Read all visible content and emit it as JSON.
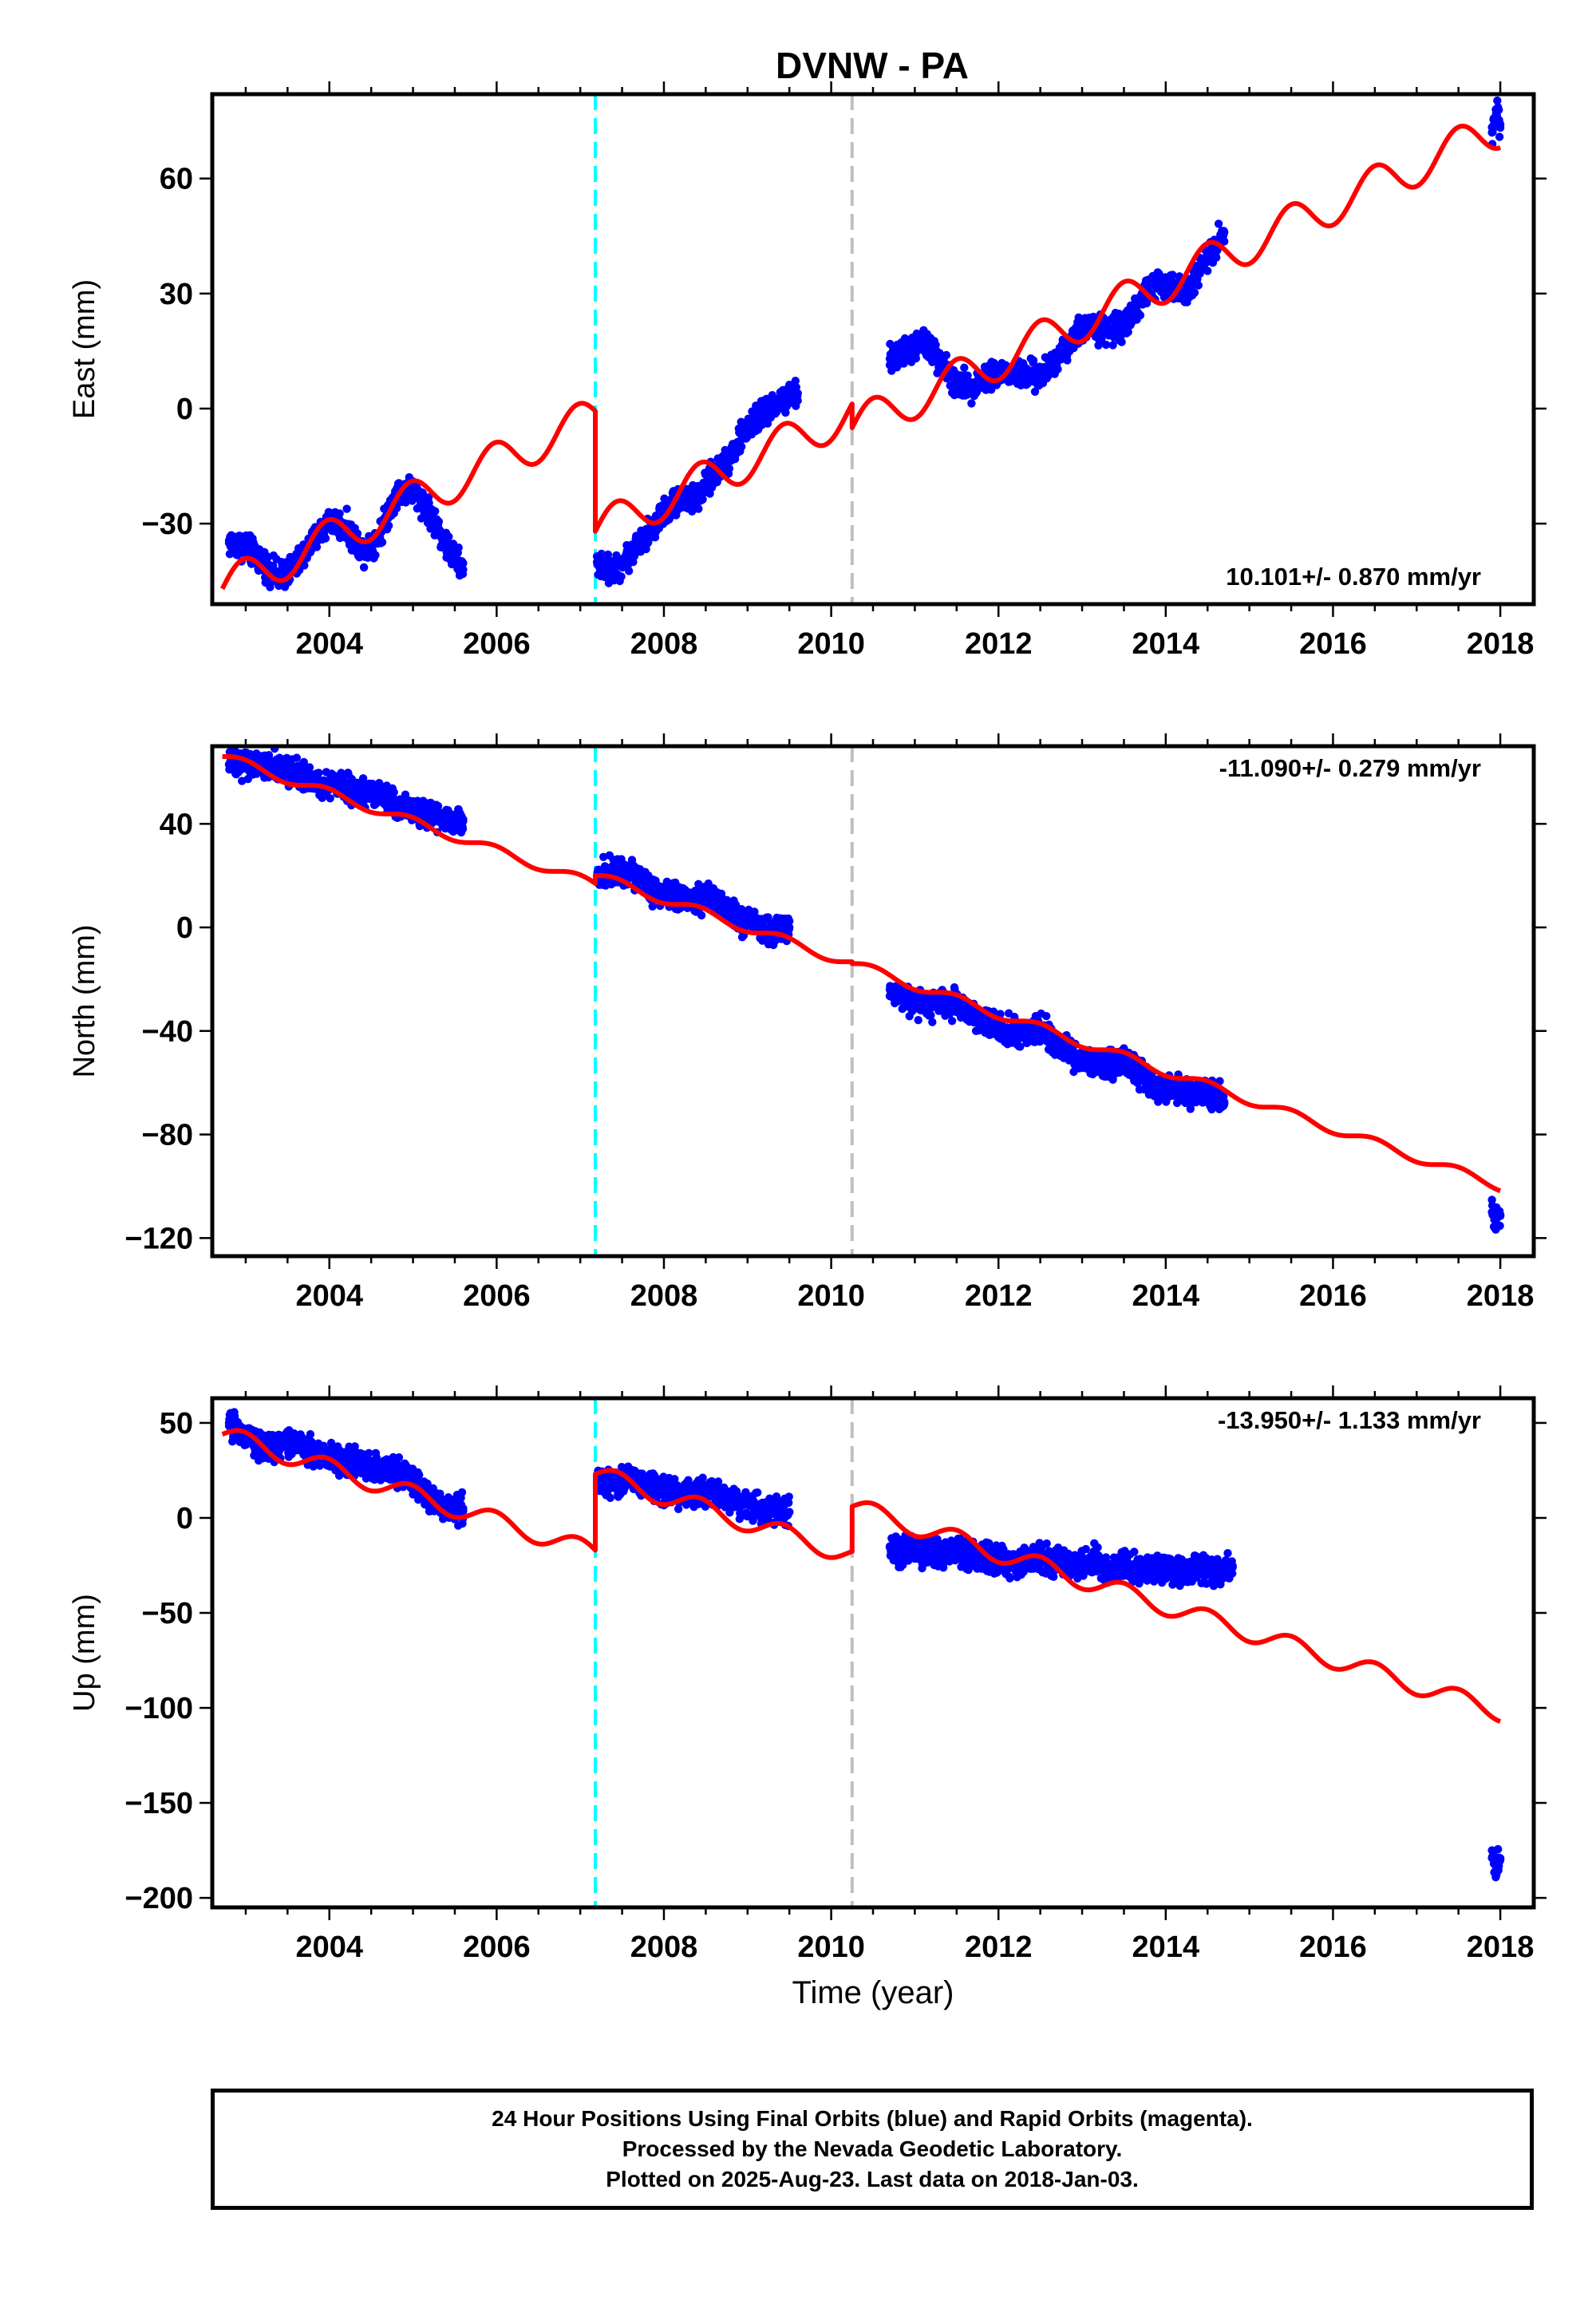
{
  "title": "DVNW - PA",
  "colors": {
    "data_points": "#0000ff",
    "model_line": "#ff0000",
    "antenna_change": "#00ffff",
    "other_offset": "#c0c0c0",
    "frame": "#000000"
  },
  "chart_data": [
    {
      "type": "scatter",
      "component": "East",
      "ylabel": "East (mm)",
      "xlabel": "",
      "xlim": [
        2002.6,
        2018.4
      ],
      "ylim": [
        -51,
        82
      ],
      "xticks": [
        2004,
        2006,
        2008,
        2010,
        2012,
        2014,
        2016,
        2018
      ],
      "yticks": [
        -30,
        0,
        30,
        60
      ],
      "rate_label": "10.101+/- 0.870 mm/yr",
      "rate_position": "bottom-right",
      "offsets": [
        {
          "year": 2007.18,
          "kind": "antenna"
        },
        {
          "year": 2010.25,
          "kind": "other"
        }
      ],
      "series": [
        {
          "kind": "daily-positions",
          "segments": [
            {
              "t": [
                2002.8,
                2003.0,
                2003.2,
                2003.4,
                2003.6,
                2003.8,
                2004.0,
                2004.2,
                2004.4,
                2004.6,
                2004.8,
                2005.0,
                2005.2,
                2005.4,
                2005.6
              ],
              "y": [
                -35,
                -36,
                -40,
                -44,
                -41,
                -35,
                -29,
                -31,
                -37,
                -33,
                -22,
                -21,
                -27,
                -36,
                -42
              ]
            },
            {
              "t": [
                2007.2,
                2007.4,
                2007.6,
                2007.8,
                2008.0,
                2008.2,
                2008.4,
                2008.6,
                2008.8,
                2009.0,
                2009.2,
                2009.4,
                2009.6
              ],
              "y": [
                -40,
                -43,
                -38,
                -33,
                -27,
                -23,
                -24,
                -17,
                -12,
                -5,
                -1,
                2,
                4
              ]
            },
            {
              "t": [
                2010.7,
                2010.9,
                2011.1,
                2011.3,
                2011.5,
                2011.7,
                2011.9,
                2012.1,
                2012.3,
                2012.5,
                2012.7,
                2012.9,
                2013.1,
                2013.3,
                2013.5,
                2013.7,
                2013.9,
                2014.1,
                2014.3,
                2014.5,
                2014.7
              ],
              "y": [
                13,
                15,
                17,
                13,
                6,
                6,
                9,
                9,
                9,
                8,
                13,
                19,
                22,
                20,
                22,
                28,
                33,
                31,
                32,
                40,
                46
              ]
            },
            {
              "t": [
                2017.9,
                2017.95,
                2018.0
              ],
              "y": [
                72,
                77,
                74
              ]
            }
          ]
        },
        {
          "kind": "model",
          "t_start": 2002.72,
          "t_end": 2018.0,
          "rate_mm_yr": 10.101,
          "amplitude": 5.2,
          "phase": 0,
          "pieces": [
            {
              "t0": 2002.72,
              "t1": 2007.18,
              "y0": -47,
              "ref": 2002.72
            },
            {
              "t0": 2007.18,
              "t1": 2010.25,
              "y0": -32,
              "ref": 2007.18
            },
            {
              "t0": 2010.25,
              "t1": 2018.0,
              "y0": -5,
              "ref": 2010.25
            }
          ]
        }
      ]
    },
    {
      "type": "scatter",
      "component": "North",
      "ylabel": "North (mm)",
      "xlabel": "",
      "xlim": [
        2002.6,
        2018.4
      ],
      "ylim": [
        -127,
        70
      ],
      "xticks": [
        2004,
        2006,
        2008,
        2010,
        2012,
        2014,
        2016,
        2018
      ],
      "yticks": [
        -120,
        -80,
        -40,
        0,
        40
      ],
      "rate_label": "-11.090+/- 0.279 mm/yr",
      "rate_position": "top-right",
      "offsets": [
        {
          "year": 2007.18,
          "kind": "antenna"
        },
        {
          "year": 2010.25,
          "kind": "other"
        }
      ],
      "series": [
        {
          "kind": "daily-positions",
          "segments": [
            {
              "t": [
                2002.8,
                2003.0,
                2003.2,
                2003.4,
                2003.6,
                2003.8,
                2004.0,
                2004.2,
                2004.4,
                2004.6,
                2004.8,
                2005.0,
                2005.2,
                2005.4,
                2005.6
              ],
              "y": [
                63,
                63,
                62,
                62,
                60,
                56,
                55,
                54,
                52,
                52,
                47,
                45,
                43,
                42,
                41
              ]
            },
            {
              "t": [
                2007.2,
                2007.4,
                2007.6,
                2007.8,
                2008.0,
                2008.2,
                2008.4,
                2008.6,
                2008.8,
                2009.0,
                2009.2,
                2009.4,
                2009.5
              ],
              "y": [
                20,
                22,
                21,
                16,
                13,
                12,
                11,
                11,
                6,
                2,
                0,
                -1,
                0
              ]
            },
            {
              "t": [
                2010.7,
                2010.9,
                2011.1,
                2011.3,
                2011.5,
                2011.7,
                2011.9,
                2012.1,
                2012.3,
                2012.5,
                2012.7,
                2012.9,
                2013.1,
                2013.3,
                2013.5,
                2013.7,
                2013.9,
                2014.1,
                2014.3,
                2014.5,
                2014.7
              ],
              "y": [
                -24,
                -28,
                -30,
                -30,
                -29,
                -33,
                -38,
                -40,
                -41,
                -40,
                -44,
                -49,
                -52,
                -53,
                -52,
                -56,
                -62,
                -63,
                -64,
                -63,
                -68
              ]
            },
            {
              "t": [
                2017.9,
                2017.95,
                2018.0
              ],
              "y": [
                -110,
                -113,
                -111
              ]
            }
          ]
        },
        {
          "kind": "model",
          "t_start": 2002.72,
          "t_end": 2018.0,
          "rate_mm_yr": -11.09,
          "amplitude": 1.8,
          "phase": 0,
          "pieces": [
            {
              "t0": 2002.72,
              "t1": 2007.18,
              "y0": 66,
              "ref": 2002.72
            },
            {
              "t0": 2007.18,
              "t1": 2010.25,
              "y0": 20,
              "ref": 2007.18
            },
            {
              "t0": 2010.25,
              "t1": 2018.0,
              "y0": -14,
              "ref": 2010.25
            }
          ]
        }
      ]
    },
    {
      "type": "scatter",
      "component": "Up",
      "ylabel": "Up (mm)",
      "xlabel": "Time (year)",
      "xlim": [
        2002.6,
        2018.4
      ],
      "ylim": [
        -205,
        63
      ],
      "xticks": [
        2004,
        2006,
        2008,
        2010,
        2012,
        2014,
        2016,
        2018
      ],
      "yticks": [
        -200,
        -150,
        -100,
        -50,
        0,
        50
      ],
      "rate_label": "-13.950+/- 1.133 mm/yr",
      "rate_position": "top-right",
      "offsets": [
        {
          "year": 2007.18,
          "kind": "antenna"
        },
        {
          "year": 2010.25,
          "kind": "other"
        }
      ],
      "series": [
        {
          "kind": "daily-positions",
          "segments": [
            {
              "t": [
                2002.8,
                2003.0,
                2003.2,
                2003.4,
                2003.6,
                2003.8,
                2004.0,
                2004.2,
                2004.4,
                2004.6,
                2004.8,
                2005.0,
                2005.2,
                2005.4,
                2005.6
              ],
              "y": [
                50,
                42,
                37,
                38,
                40,
                35,
                33,
                30,
                28,
                25,
                24,
                20,
                10,
                6,
                5
              ]
            },
            {
              "t": [
                2007.2,
                2007.4,
                2007.6,
                2007.8,
                2008.0,
                2008.2,
                2008.4,
                2008.6,
                2008.8,
                2009.0,
                2009.2,
                2009.4,
                2009.5
              ],
              "y": [
                20,
                18,
                22,
                17,
                14,
                12,
                13,
                14,
                10,
                7,
                4,
                4,
                3
              ]
            },
            {
              "t": [
                2010.7,
                2010.9,
                2011.1,
                2011.3,
                2011.5,
                2011.7,
                2011.9,
                2012.1,
                2012.3,
                2012.5,
                2012.7,
                2012.9,
                2013.1,
                2013.3,
                2013.5,
                2013.7,
                2014.2,
                2014.4,
                2014.6,
                2014.8
              ],
              "y": [
                -15,
                -18,
                -17,
                -19,
                -17,
                -22,
                -21,
                -24,
                -22,
                -21,
                -24,
                -25,
                -22,
                -26,
                -26,
                -27,
                -28,
                -27,
                -28,
                -26
              ]
            },
            {
              "t": [
                2017.9,
                2017.95,
                2018.0
              ],
              "y": [
                -175,
                -185,
                -180
              ]
            }
          ]
        },
        {
          "kind": "model",
          "t_start": 2002.72,
          "t_end": 2018.0,
          "rate_mm_yr": -13.95,
          "amplitude": 5.0,
          "phase": 0,
          "pieces": [
            {
              "t0": 2002.72,
              "t1": 2007.18,
              "y0": 44,
              "ref": 2002.72
            },
            {
              "t0": 2007.18,
              "t1": 2010.25,
              "y0": 23,
              "ref": 2007.18
            },
            {
              "t0": 2010.25,
              "t1": 2018.0,
              "y0": 6,
              "ref": 2010.25
            }
          ]
        }
      ]
    }
  ],
  "caption": {
    "line1": "24 Hour Positions Using Final Orbits (blue) and Rapid Orbits (magenta).",
    "line2": "Processed by the Nevada Geodetic Laboratory.",
    "line3": "Plotted on 2025-Aug-23. Last data on 2018-Jan-03."
  }
}
